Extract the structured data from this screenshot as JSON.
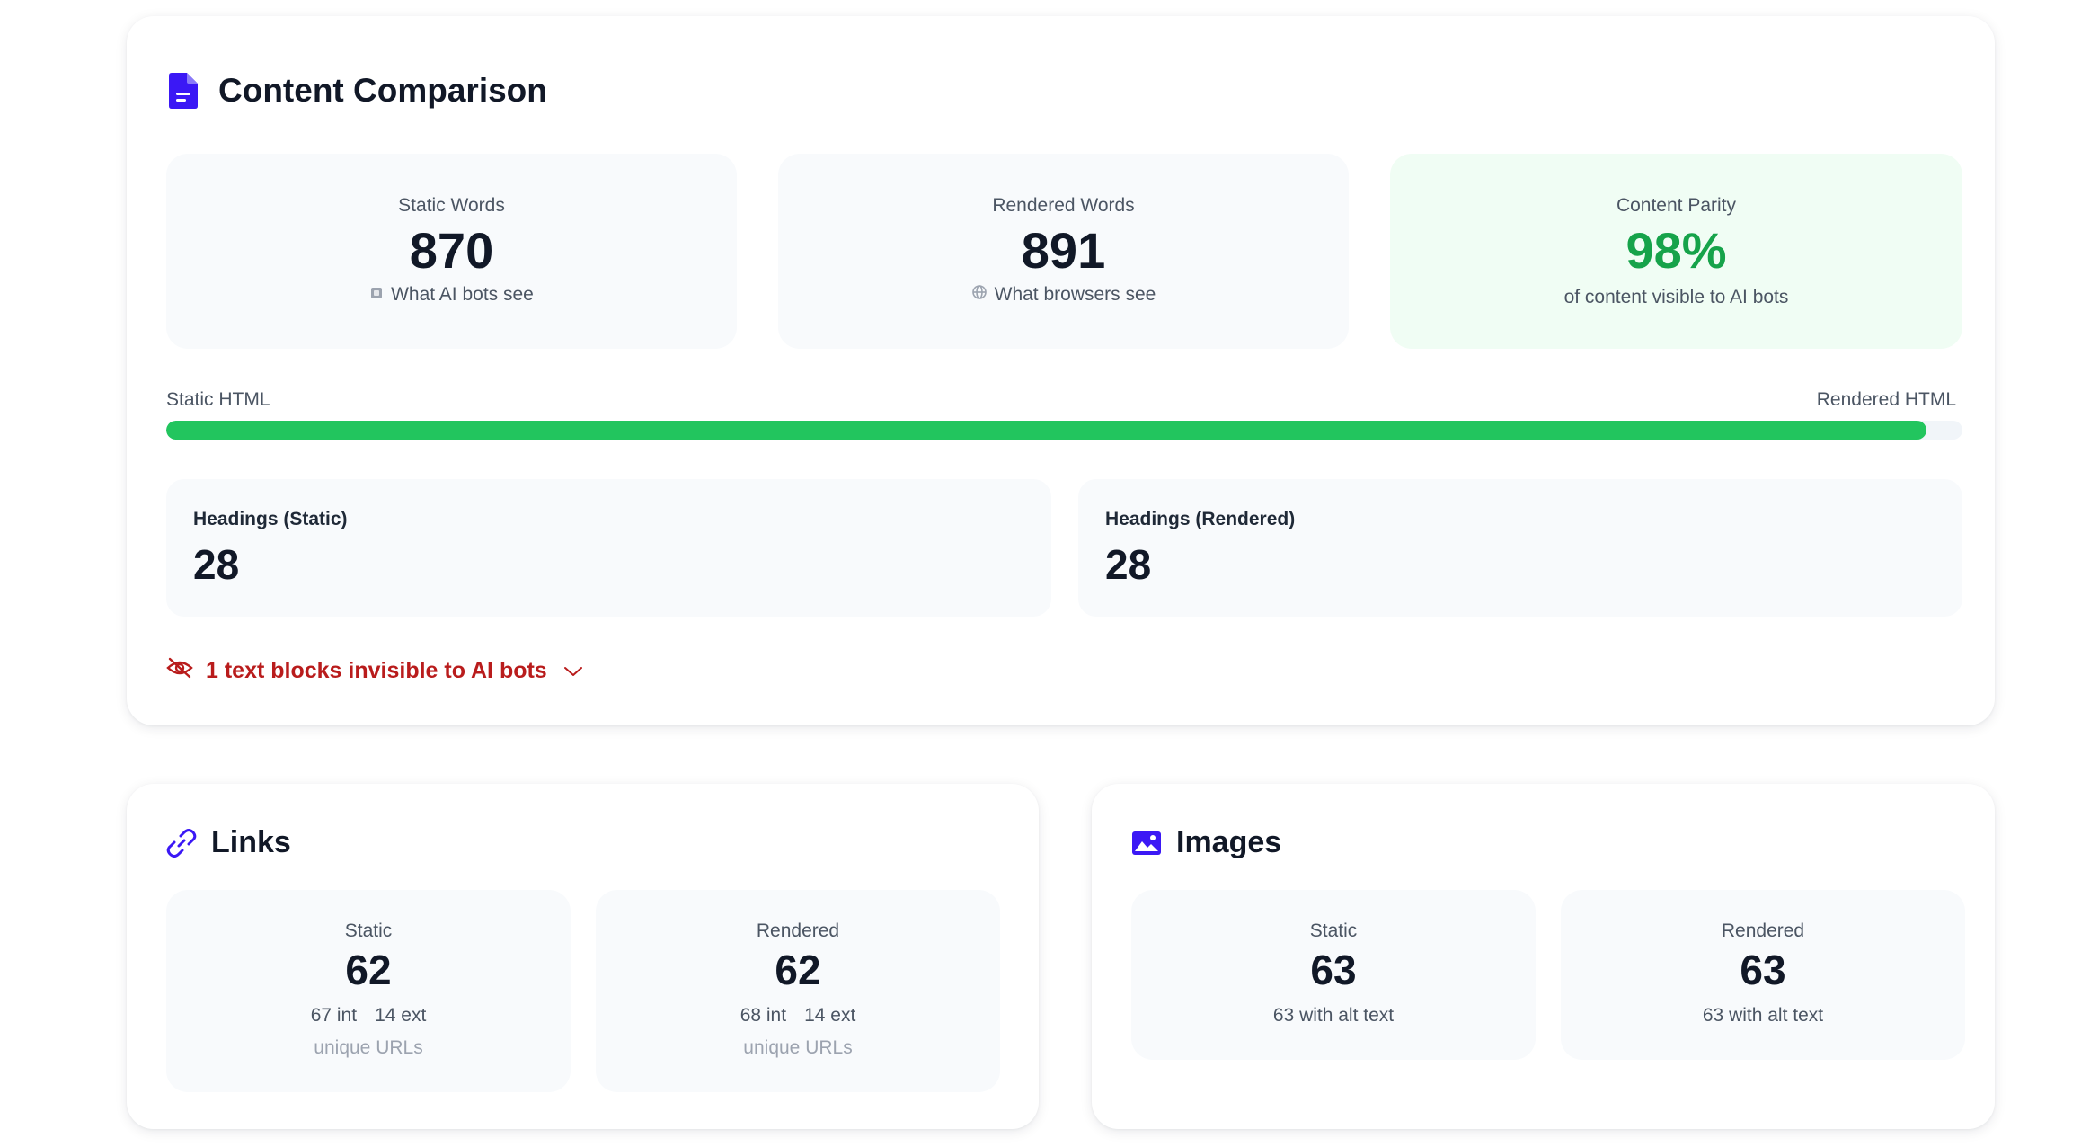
{
  "content_comparison": {
    "title": "Content Comparison",
    "icon": "document-icon",
    "static_words": {
      "label": "Static Words",
      "value": "870",
      "sub": "What AI bots see",
      "icon": "chip-icon"
    },
    "rendered_words": {
      "label": "Rendered Words",
      "value": "891",
      "sub": "What browsers see",
      "icon": "globe-icon"
    },
    "parity": {
      "label": "Content Parity",
      "value": "98%",
      "sub": "of content visible to AI bots"
    },
    "bar": {
      "left_label": "Static HTML",
      "right_label": "Rendered HTML",
      "fill_fraction": 0.98
    },
    "headings_static": {
      "label": "Headings (Static)",
      "value": "28"
    },
    "headings_rendered": {
      "label": "Headings (Rendered)",
      "value": "28"
    },
    "invisible_notice": {
      "text": "1 text blocks invisible to AI bots",
      "icon": "eye-off-icon"
    }
  },
  "links": {
    "title": "Links",
    "icon": "link-icon",
    "static": {
      "label": "Static",
      "value": "62",
      "int": "67 int",
      "ext": "14 ext",
      "note": "unique URLs"
    },
    "rendered": {
      "label": "Rendered",
      "value": "62",
      "int": "68 int",
      "ext": "14 ext",
      "note": "unique URLs"
    }
  },
  "images": {
    "title": "Images",
    "icon": "image-icon",
    "static": {
      "label": "Static",
      "value": "63",
      "sub": "63 with alt text"
    },
    "rendered": {
      "label": "Rendered",
      "value": "63",
      "sub": "63 with alt text"
    }
  },
  "colors": {
    "accent": "#3b18f5",
    "green": "#22c55e",
    "green_text": "#16a34a",
    "parity_bg": "#f0fdf4",
    "warning": "#b91c1c"
  }
}
